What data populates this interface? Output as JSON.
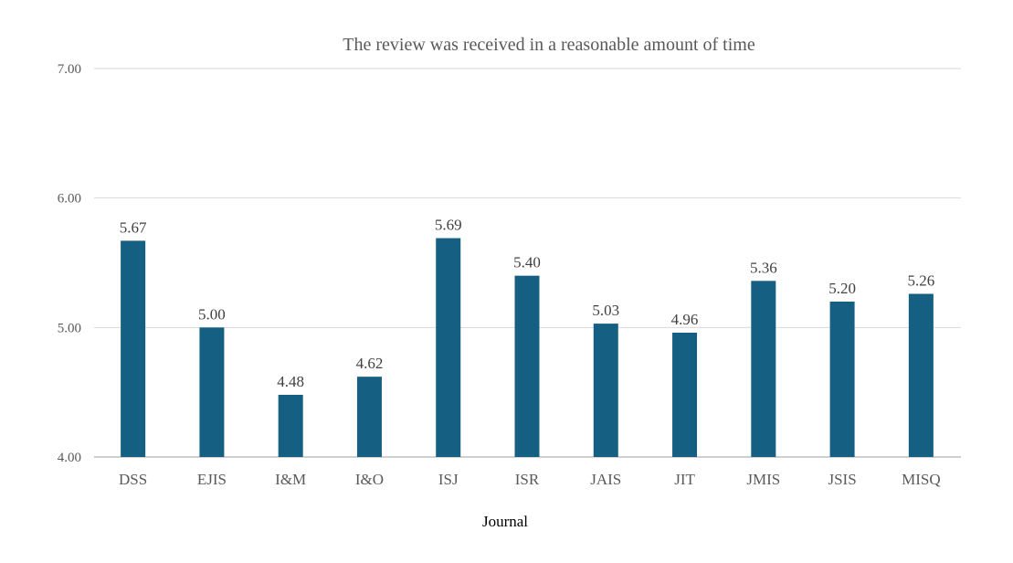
{
  "chart_data": {
    "type": "bar",
    "title": "The review was received in a reasonable amount of time",
    "xlabel": "Journal",
    "ylabel": "",
    "categories": [
      "DSS",
      "EJIS",
      "I&M",
      "I&O",
      "ISJ",
      "ISR",
      "JAIS",
      "JIT",
      "JMIS",
      "JSIS",
      "MISQ"
    ],
    "values": [
      5.67,
      5.0,
      4.48,
      4.62,
      5.69,
      5.4,
      5.03,
      4.96,
      5.36,
      5.2,
      5.26
    ],
    "ylim": [
      4,
      7
    ],
    "yticks": [
      "4.00",
      "5.00",
      "6.00",
      "7.00"
    ],
    "grid": true,
    "bar_color": "#156082"
  }
}
